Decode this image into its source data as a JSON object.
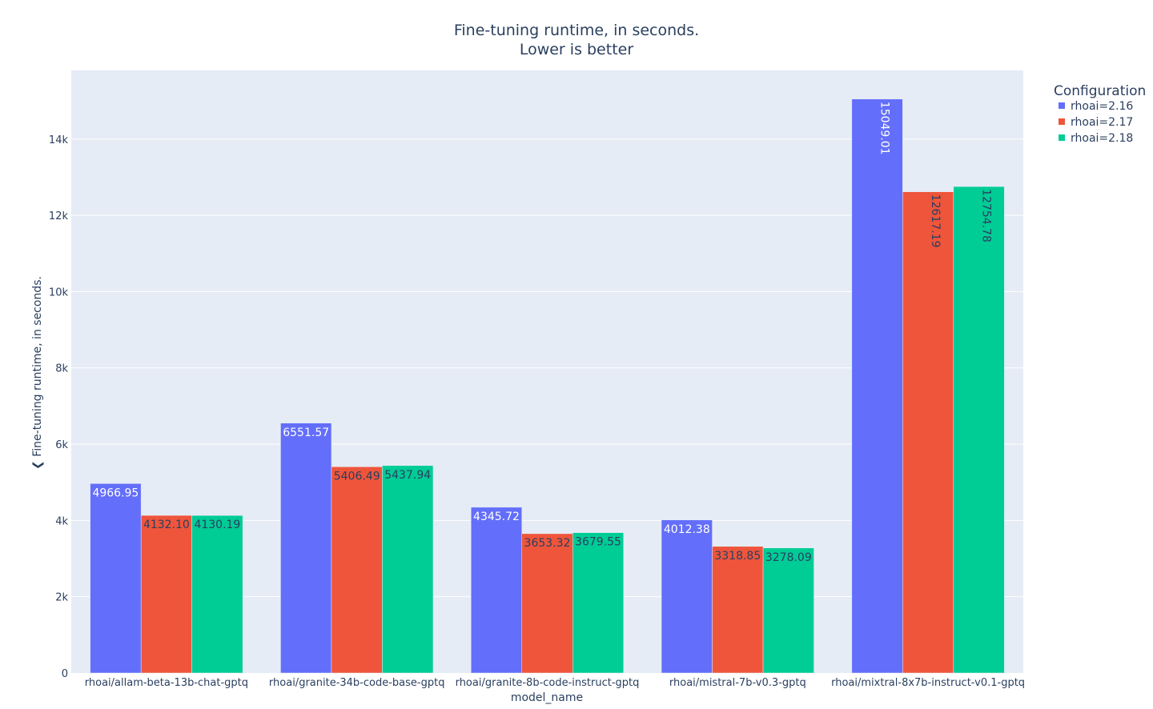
{
  "chart_data": {
    "type": "bar",
    "title": "Fine-tuning runtime, in seconds.",
    "subtitle": "Lower is better",
    "xlabel": "model_name",
    "ylabel": "❮ Fine-tuning runtime, in seconds.",
    "ylim": [
      0,
      15800
    ],
    "yticks": [
      0,
      2000,
      4000,
      6000,
      8000,
      10000,
      12000,
      14000
    ],
    "ytick_labels": [
      "0",
      "2k",
      "4k",
      "6k",
      "8k",
      "10k",
      "12k",
      "14k"
    ],
    "grid": true,
    "legend_title": "Configuration",
    "legend_position": "top-right",
    "categories": [
      "rhoai/allam-beta-13b-chat-gptq",
      "rhoai/granite-34b-code-base-gptq",
      "rhoai/granite-8b-code-instruct-gptq",
      "rhoai/mistral-7b-v0.3-gptq",
      "rhoai/mixtral-8x7b-instruct-v0.1-gptq"
    ],
    "series": [
      {
        "name": "rhoai=2.16",
        "color": "#636efa",
        "label_color": "#ffffff",
        "values": [
          4966.95,
          6551.57,
          4345.72,
          4012.38,
          15049.01
        ],
        "labels": [
          "4966.95",
          "6551.57",
          "4345.72",
          "4012.38",
          "15049.01"
        ]
      },
      {
        "name": "rhoai=2.17",
        "color": "#ef553b",
        "label_color": "#2a3f5f",
        "values": [
          4132.1,
          5406.49,
          3653.32,
          3318.85,
          12617.19
        ],
        "labels": [
          "4132.10",
          "5406.49",
          "3653.32",
          "3318.85",
          "12617.19"
        ]
      },
      {
        "name": "rhoai=2.18",
        "color": "#00cc96",
        "label_color": "#2a3f5f",
        "values": [
          4130.19,
          5437.94,
          3679.55,
          3278.09,
          12754.78
        ],
        "labels": [
          "4130.19",
          "5437.94",
          "3679.55",
          "3278.09",
          "12754.78"
        ]
      }
    ],
    "colors": {
      "plot_background": "#e5ecf6",
      "gridline": "#ffffff",
      "text": "#2a3f5f"
    }
  }
}
